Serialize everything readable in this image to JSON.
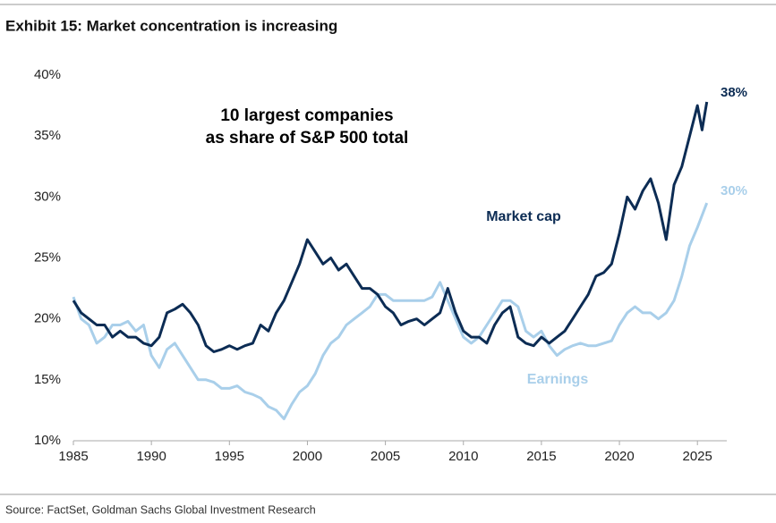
{
  "chart_data": {
    "type": "line",
    "title": "Exhibit 15: Market concentration is increasing",
    "source": "Source: FactSet, Goldman Sachs Global Investment Research",
    "annotations": [
      "10 largest companies",
      "as share of S&P 500 total"
    ],
    "xlim": [
      1985,
      2027
    ],
    "xticks": [
      1985,
      1990,
      1995,
      2000,
      2005,
      2010,
      2015,
      2020,
      2025
    ],
    "ylim": [
      10,
      40
    ],
    "yticks": [
      {
        "value": 10,
        "label": "10%"
      },
      {
        "value": 15,
        "label": "15%"
      },
      {
        "value": 20,
        "label": "20%"
      },
      {
        "value": 25,
        "label": "25%"
      },
      {
        "value": 30,
        "label": "30%"
      },
      {
        "value": 35,
        "label": "35%"
      },
      {
        "value": 40,
        "label": "40%"
      }
    ],
    "grid": false,
    "series": [
      {
        "name": "Market cap",
        "color": "#0c2c54",
        "end_label": "38%",
        "x": [
          1985,
          1985.5,
          1986,
          1986.5,
          1987,
          1987.5,
          1988,
          1988.5,
          1989,
          1989.5,
          1990,
          1990.5,
          1991,
          1991.5,
          1992,
          1992.5,
          1993,
          1993.5,
          1994,
          1994.5,
          1995,
          1995.5,
          1996,
          1996.5,
          1997,
          1997.5,
          1998,
          1998.5,
          1999,
          1999.5,
          2000,
          2000.5,
          2001,
          2001.5,
          2002,
          2002.5,
          2003,
          2003.5,
          2004,
          2004.5,
          2005,
          2005.5,
          2006,
          2006.5,
          2007,
          2007.5,
          2008,
          2008.5,
          2009,
          2009.5,
          2010,
          2010.5,
          2011,
          2011.5,
          2012,
          2012.5,
          2013,
          2013.5,
          2014,
          2014.5,
          2015,
          2015.5,
          2016,
          2016.5,
          2017,
          2017.5,
          2018,
          2018.5,
          2019,
          2019.5,
          2020,
          2020.5,
          2021,
          2021.5,
          2022,
          2022.5,
          2023,
          2023.5,
          2024,
          2024.5,
          2025,
          2025.3,
          2025.6
        ],
        "values": [
          21.5,
          20.5,
          20,
          19.5,
          19.5,
          18.5,
          19,
          18.5,
          18.5,
          18,
          17.8,
          18.5,
          20.5,
          20.8,
          21.2,
          20.5,
          19.5,
          17.8,
          17.3,
          17.5,
          17.8,
          17.5,
          17.8,
          18,
          19.5,
          19,
          20.5,
          21.5,
          23,
          24.5,
          26.5,
          25.5,
          24.5,
          25,
          24,
          24.5,
          23.5,
          22.5,
          22.5,
          22,
          21,
          20.5,
          19.5,
          19.8,
          20,
          19.5,
          20,
          20.5,
          22.5,
          20.5,
          19,
          18.5,
          18.5,
          18,
          19.5,
          20.5,
          21,
          18.5,
          18,
          17.8,
          18.5,
          18,
          18.5,
          19,
          20,
          21,
          22,
          23.5,
          23.8,
          24.5,
          27,
          30,
          29,
          30.5,
          31.5,
          29.5,
          26.5,
          31,
          32.5,
          35,
          37.5,
          35.5,
          37.8
        ]
      },
      {
        "name": "Earnings",
        "color": "#a9cfea",
        "end_label": "30%",
        "x": [
          1985,
          1985.5,
          1986,
          1986.5,
          1987,
          1987.5,
          1988,
          1988.5,
          1989,
          1989.5,
          1990,
          1990.5,
          1991,
          1991.5,
          1992,
          1992.5,
          1993,
          1993.5,
          1994,
          1994.5,
          1995,
          1995.5,
          1996,
          1996.5,
          1997,
          1997.5,
          1998,
          1998.5,
          1999,
          1999.5,
          2000,
          2000.5,
          2001,
          2001.5,
          2002,
          2002.5,
          2003,
          2003.5,
          2004,
          2004.5,
          2005,
          2005.5,
          2006,
          2006.5,
          2007,
          2007.5,
          2008,
          2008.5,
          2009,
          2009.5,
          2010,
          2010.5,
          2011,
          2011.5,
          2012,
          2012.5,
          2013,
          2013.5,
          2014,
          2014.5,
          2015,
          2015.5,
          2016,
          2016.5,
          2017,
          2017.5,
          2018,
          2018.5,
          2019,
          2019.5,
          2020,
          2020.5,
          2021,
          2021.5,
          2022,
          2022.5,
          2023,
          2023.5,
          2024,
          2024.5,
          2025,
          2025.6
        ],
        "values": [
          21.8,
          20,
          19.5,
          18,
          18.5,
          19.5,
          19.5,
          19.8,
          19,
          19.5,
          17,
          16,
          17.5,
          18,
          17,
          16,
          15,
          15,
          14.8,
          14.3,
          14.3,
          14.5,
          14,
          13.8,
          13.5,
          12.8,
          12.5,
          11.8,
          13,
          14,
          14.5,
          15.5,
          17,
          18,
          18.5,
          19.5,
          20,
          20.5,
          21,
          22,
          22,
          21.5,
          21.5,
          21.5,
          21.5,
          21.5,
          21.8,
          23,
          21.5,
          20,
          18.5,
          18,
          18.5,
          19.5,
          20.5,
          21.5,
          21.5,
          21,
          19,
          18.5,
          19,
          17.8,
          17,
          17.5,
          17.8,
          18,
          17.8,
          17.8,
          18,
          18.2,
          19.5,
          20.5,
          21,
          20.5,
          20.5,
          20,
          20.5,
          21.5,
          23.5,
          26,
          27.5,
          29.5
        ]
      }
    ]
  }
}
